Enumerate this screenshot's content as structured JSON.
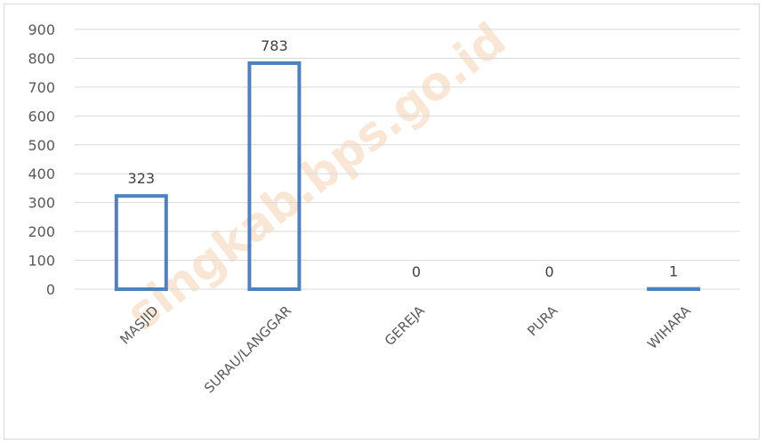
{
  "chart_data": {
    "type": "bar",
    "categories": [
      "MASJID",
      "SURAU/LANGGAR",
      "GEREJA",
      "PURA",
      "WIHARA"
    ],
    "values": [
      323,
      783,
      0,
      0,
      1
    ],
    "data_labels": [
      "323",
      "783",
      "0",
      "0",
      "1"
    ],
    "ylim": [
      0,
      900
    ],
    "yticks": [
      0,
      100,
      200,
      300,
      400,
      500,
      600,
      700,
      800,
      900
    ],
    "grid": true,
    "legend": "none",
    "bar_style": "outline",
    "bar_color": "#4f81bd"
  },
  "watermark_text": "singkab.bps.go.id"
}
